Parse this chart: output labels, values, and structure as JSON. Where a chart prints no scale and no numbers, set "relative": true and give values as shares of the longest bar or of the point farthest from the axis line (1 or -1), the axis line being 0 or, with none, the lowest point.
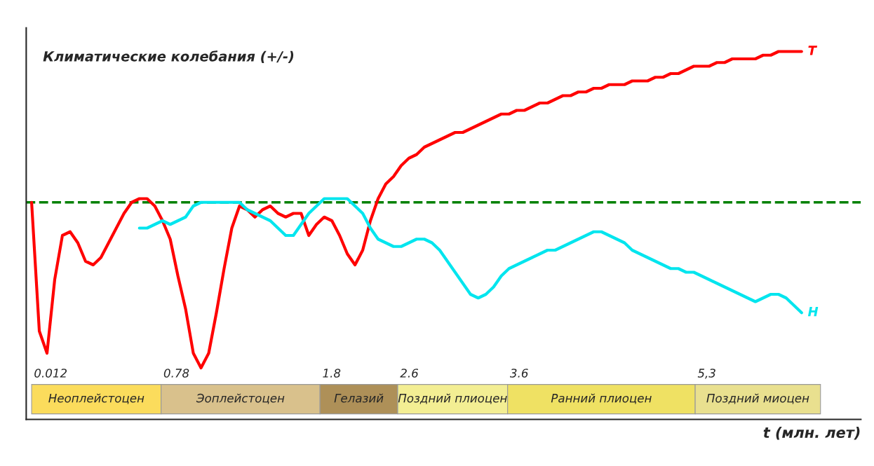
{
  "chart_data": {
    "type": "line",
    "relative": true,
    "title": "Климатические колебания (+/-)",
    "xlabel": "t (млн. лет)",
    "categories": [
      null,
      null,
      null,
      null,
      null,
      null,
      null,
      null,
      null,
      null,
      null,
      null,
      null,
      null,
      null,
      null,
      null,
      null,
      null,
      null,
      null,
      null,
      null,
      null,
      null,
      null,
      null,
      null,
      null,
      null,
      null,
      null,
      null,
      null,
      null,
      null,
      null,
      null,
      null,
      null,
      null,
      null,
      null,
      null,
      null,
      null,
      null,
      null,
      null,
      null,
      null,
      null,
      null,
      null,
      null,
      null,
      null,
      null,
      null,
      null,
      null,
      null,
      null,
      null,
      null,
      null,
      null,
      null,
      null,
      null,
      null,
      null,
      null,
      null,
      null,
      null,
      null,
      null,
      null,
      null,
      null,
      null,
      null,
      null,
      null,
      null,
      null,
      null,
      null,
      null,
      null,
      null,
      null,
      null,
      null,
      null,
      null,
      null,
      null,
      null,
      null
    ],
    "grid": false,
    "legend": false,
    "marker": "none",
    "line_style": "solid",
    "series": [
      {
        "name": "T",
        "color": "#ff0000",
        "values": [
          0.59,
          0.24,
          0.18,
          0.38,
          0.5,
          0.51,
          0.48,
          0.43,
          0.42,
          0.44,
          0.48,
          0.52,
          0.56,
          0.59,
          0.6,
          0.6,
          0.58,
          0.54,
          0.49,
          0.39,
          0.3,
          0.18,
          0.14,
          0.18,
          0.29,
          0.41,
          0.52,
          0.58,
          0.57,
          0.55,
          0.57,
          0.58,
          0.56,
          0.55,
          0.56,
          0.56,
          0.5,
          0.53,
          0.55,
          0.54,
          0.5,
          0.45,
          0.42,
          0.46,
          0.54,
          0.6,
          0.64,
          0.66,
          0.69,
          0.71,
          0.72,
          0.74,
          0.75,
          0.76,
          0.77,
          0.78,
          0.78,
          0.79,
          0.8,
          0.81,
          0.82,
          0.83,
          0.83,
          0.84,
          0.84,
          0.85,
          0.86,
          0.86,
          0.87,
          0.88,
          0.88,
          0.89,
          0.89,
          0.9,
          0.9,
          0.91,
          0.91,
          0.91,
          0.92,
          0.92,
          0.92,
          0.93,
          0.93,
          0.94,
          0.94,
          0.95,
          0.96,
          0.96,
          0.96,
          0.97,
          0.97,
          0.98,
          0.98,
          0.98,
          0.98,
          0.99,
          0.99,
          1.0,
          1.0,
          1.0,
          1.0
        ]
      },
      {
        "name": "H",
        "color": "#00e5ee",
        "values": [
          null,
          null,
          null,
          null,
          null,
          null,
          null,
          null,
          null,
          null,
          null,
          null,
          null,
          null,
          0.52,
          0.52,
          0.53,
          0.54,
          0.53,
          0.54,
          0.55,
          0.58,
          0.59,
          0.59,
          0.59,
          0.59,
          0.59,
          0.59,
          0.57,
          0.56,
          0.55,
          0.54,
          0.52,
          0.5,
          0.5,
          0.53,
          0.56,
          0.58,
          0.6,
          0.6,
          0.6,
          0.6,
          0.58,
          0.56,
          0.52,
          0.49,
          0.48,
          0.47,
          0.47,
          0.48,
          0.49,
          0.49,
          0.48,
          0.46,
          0.43,
          0.4,
          0.37,
          0.34,
          0.33,
          0.34,
          0.36,
          0.39,
          0.41,
          0.42,
          0.43,
          0.44,
          0.45,
          0.46,
          0.46,
          0.47,
          0.48,
          0.49,
          0.5,
          0.51,
          0.51,
          0.5,
          0.49,
          0.48,
          0.46,
          0.45,
          0.44,
          0.43,
          0.42,
          0.41,
          0.41,
          0.4,
          0.4,
          0.39,
          0.38,
          0.37,
          0.36,
          0.35,
          0.34,
          0.33,
          0.32,
          0.33,
          0.34,
          0.34,
          0.33,
          0.31,
          0.29
        ]
      }
    ],
    "ref_lines": [
      {
        "axis": "y",
        "value": 0.59,
        "color": "#008000",
        "line_style": "dashed"
      }
    ],
    "annotations": [
      "0.012",
      "0.78",
      "1.8",
      "2.6",
      "3.6",
      "5,3",
      "Неоплейстоцен",
      "Эоплейстоцен",
      "Гелазий",
      "Поздний плиоцен",
      "Ранний плиоцен",
      "Поздний миоцен"
    ]
  }
}
